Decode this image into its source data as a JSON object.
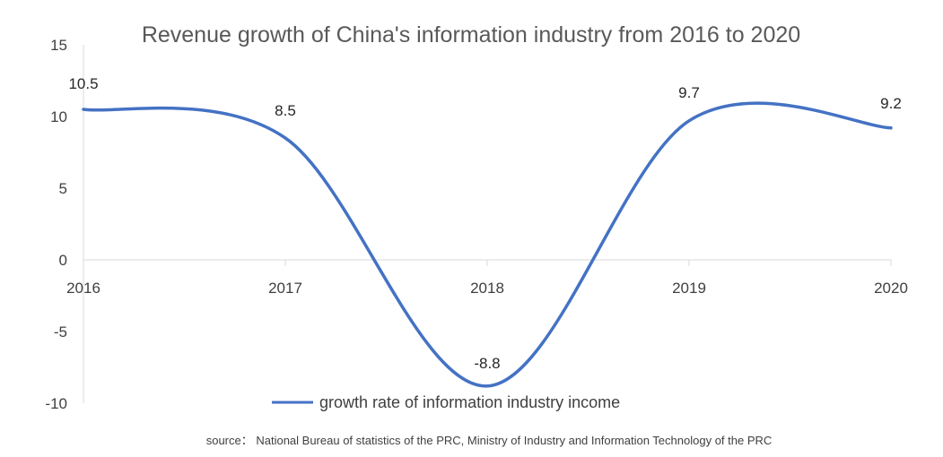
{
  "chart_data": {
    "type": "line",
    "title": "Revenue growth of China's information industry from 2016 to 2020",
    "categories": [
      "2016",
      "2017",
      "2018",
      "2019",
      "2020"
    ],
    "series": [
      {
        "name": "growth rate of information industry income",
        "values": [
          10.5,
          8.5,
          -8.8,
          9.7,
          9.2
        ],
        "data_labels": [
          "10.5",
          "8.5",
          "-8.8",
          "9.7",
          "9.2"
        ],
        "color": "#4472C4",
        "smooth": true
      }
    ],
    "ylim": [
      -10,
      15
    ],
    "yticks": [
      "15",
      "10",
      "5",
      "0",
      "-5",
      "-10"
    ],
    "grid": false,
    "legend": "bottom-center",
    "source": "source： National Bureau of statistics of the PRC, Ministry of Industry and Information Technology of the PRC"
  }
}
